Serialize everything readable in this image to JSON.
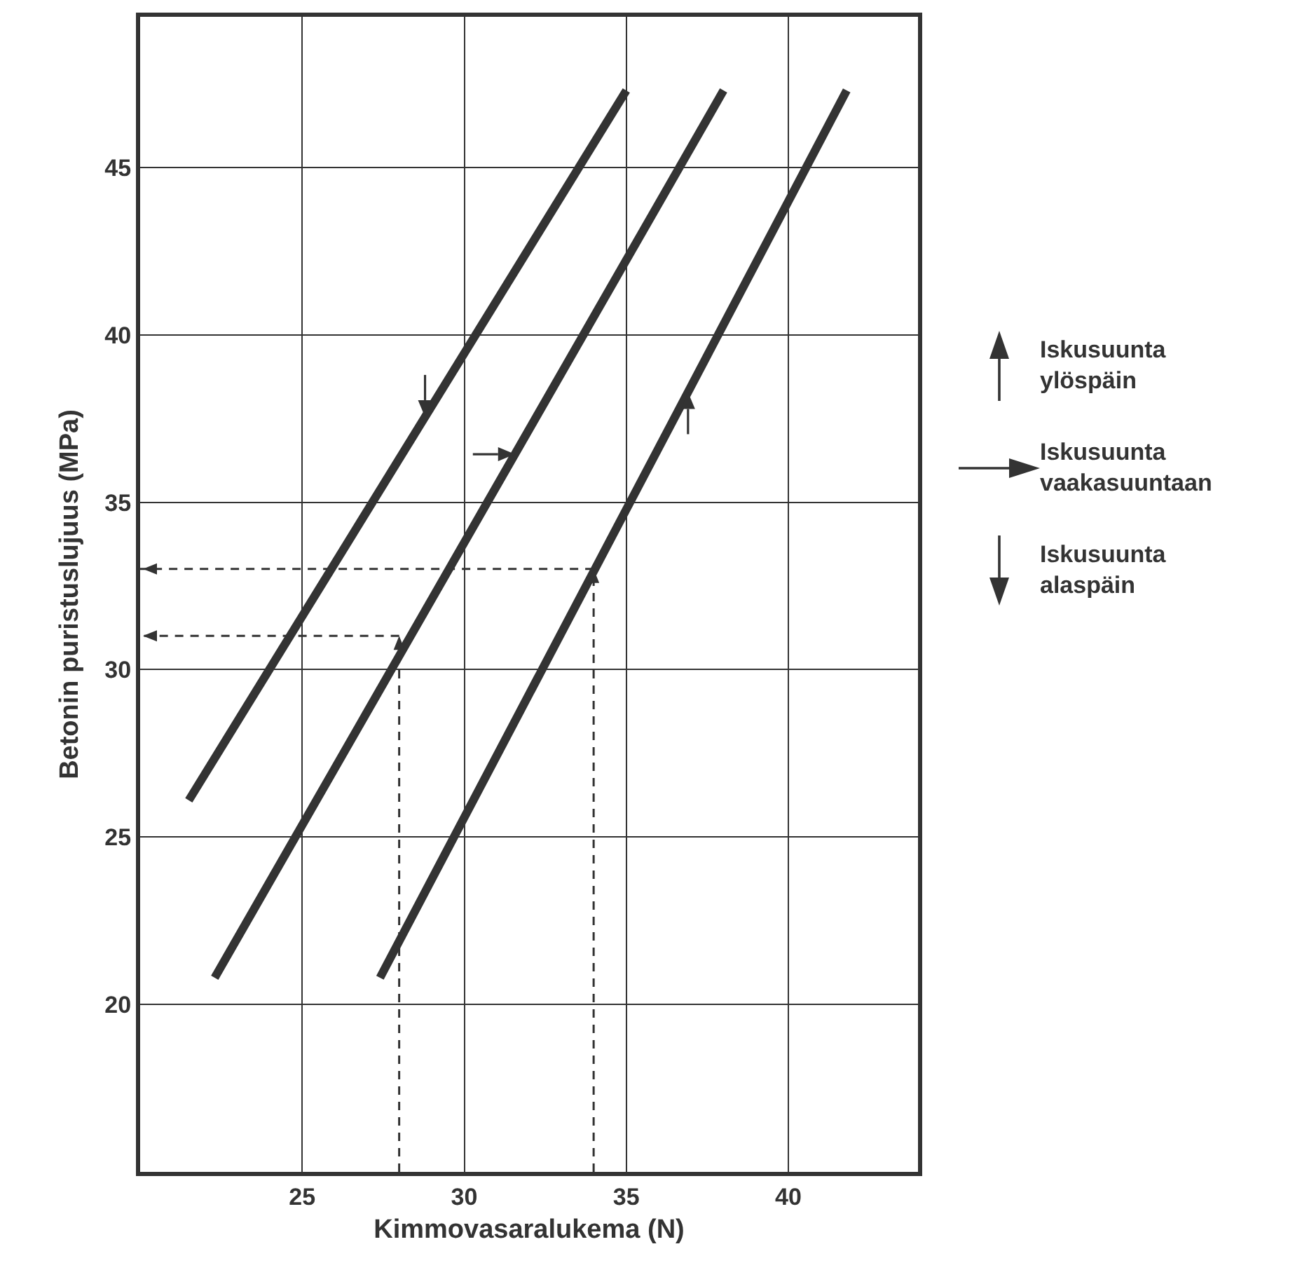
{
  "chart_data": {
    "type": "line",
    "xlabel": "Kimmovasaralukema (N)",
    "ylabel": "Betonin puristuslujuus (MPa)",
    "xlim": [
      20,
      44
    ],
    "xticks": [
      25,
      30,
      35,
      40
    ],
    "ylim": [
      15,
      49.5
    ],
    "yticks": [
      20,
      25,
      30,
      35,
      40,
      45
    ],
    "grid": true,
    "legend": "right",
    "line_style": "solid",
    "series": [
      {
        "name": "Iskusuunta ylöspäin",
        "color": "#333333",
        "x": [
          27.4,
          41.8
        ],
        "values": [
          20.8,
          47.3
        ]
      },
      {
        "name": "Iskusuunta vaakasuuntaan",
        "color": "#333333",
        "x": [
          22.3,
          38.0
        ],
        "values": [
          20.8,
          47.3
        ]
      },
      {
        "name": "Iskusuunta alaspäin",
        "color": "#333333",
        "x": [
          21.5,
          35.0
        ],
        "values": [
          26.1,
          47.3
        ]
      }
    ]
  }
}
